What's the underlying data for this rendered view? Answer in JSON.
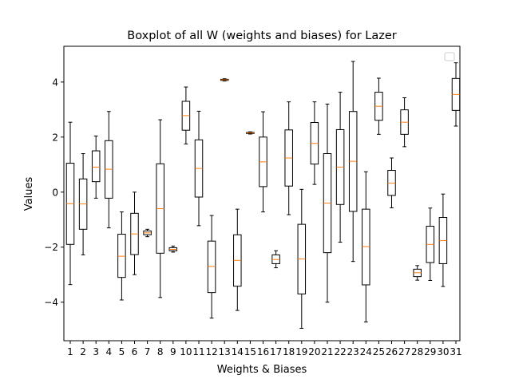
{
  "chart_data": {
    "type": "boxplot",
    "title": "Boxplot of all W (weights and biases) for Lazer",
    "xlabel": "Weights & Biases",
    "ylabel": "Values",
    "ylim": [
      -5.4,
      5.3
    ],
    "yticks": [
      -4,
      -2,
      0,
      2,
      4
    ],
    "grid": false,
    "legend": {
      "placement": "top-right",
      "entries": []
    },
    "colors": {
      "box": "#000000",
      "median": "#ff7f0e",
      "background": "#ffffff"
    },
    "categories": [
      "1",
      "2",
      "3",
      "4",
      "5",
      "6",
      "7",
      "8",
      "9",
      "10",
      "11",
      "12",
      "13",
      "14",
      "15",
      "16",
      "17",
      "18",
      "19",
      "20",
      "21",
      "22",
      "23",
      "24",
      "25",
      "26",
      "27",
      "28",
      "29",
      "30",
      "31"
    ],
    "boxes": [
      {
        "whisker_low": -3.36,
        "q1": -1.9,
        "median": -0.42,
        "q3": 1.05,
        "whisker_high": 2.54
      },
      {
        "whisker_low": -2.28,
        "q1": -1.35,
        "median": -0.43,
        "q3": 0.48,
        "whisker_high": 1.4
      },
      {
        "whisker_low": -0.22,
        "q1": 0.38,
        "median": 0.91,
        "q3": 1.5,
        "whisker_high": 2.04
      },
      {
        "whisker_low": -1.3,
        "q1": -0.22,
        "median": 0.83,
        "q3": 1.87,
        "whisker_high": 2.93
      },
      {
        "whisker_low": -3.92,
        "q1": -3.1,
        "median": -2.33,
        "q3": -1.53,
        "whisker_high": -0.72
      },
      {
        "whisker_low": -3.0,
        "q1": -2.27,
        "median": -1.52,
        "q3": -0.77,
        "whisker_high": 0.0
      },
      {
        "whisker_low": -1.62,
        "q1": -1.55,
        "median": -1.48,
        "q3": -1.41,
        "whisker_high": -1.35
      },
      {
        "whisker_low": -3.83,
        "q1": -2.22,
        "median": -0.6,
        "q3": 1.03,
        "whisker_high": 2.63
      },
      {
        "whisker_low": -2.18,
        "q1": -2.13,
        "median": -2.08,
        "q3": -2.02,
        "whisker_high": -1.96
      },
      {
        "whisker_low": 1.75,
        "q1": 2.25,
        "median": 2.78,
        "q3": 3.3,
        "whisker_high": 3.82
      },
      {
        "whisker_low": -1.22,
        "q1": -0.18,
        "median": 0.86,
        "q3": 1.9,
        "whisker_high": 2.94
      },
      {
        "whisker_low": -4.58,
        "q1": -3.65,
        "median": -2.7,
        "q3": -1.78,
        "whisker_high": -0.85
      },
      {
        "whisker_low": 4.04,
        "q1": 4.06,
        "median": 4.08,
        "q3": 4.1,
        "whisker_high": 4.12
      },
      {
        "whisker_low": -4.3,
        "q1": -3.42,
        "median": -2.48,
        "q3": -1.55,
        "whisker_high": -0.62
      },
      {
        "whisker_low": 2.11,
        "q1": 2.13,
        "median": 2.15,
        "q3": 2.17,
        "whisker_high": 2.19
      },
      {
        "whisker_low": -0.72,
        "q1": 0.2,
        "median": 1.1,
        "q3": 2.0,
        "whisker_high": 2.92
      },
      {
        "whisker_low": -2.75,
        "q1": -2.6,
        "median": -2.45,
        "q3": -2.28,
        "whisker_high": -2.13
      },
      {
        "whisker_low": -0.82,
        "q1": 0.22,
        "median": 1.24,
        "q3": 2.26,
        "whisker_high": 3.28
      },
      {
        "whisker_low": -4.95,
        "q1": -3.7,
        "median": -2.43,
        "q3": -1.17,
        "whisker_high": 0.1
      },
      {
        "whisker_low": 0.28,
        "q1": 1.02,
        "median": 1.77,
        "q3": 2.53,
        "whisker_high": 3.28
      },
      {
        "whisker_low": -4.0,
        "q1": -2.2,
        "median": -0.4,
        "q3": 1.4,
        "whisker_high": 3.2
      },
      {
        "whisker_low": -1.82,
        "q1": -0.45,
        "median": 0.91,
        "q3": 2.27,
        "whisker_high": 3.63
      },
      {
        "whisker_low": -2.52,
        "q1": -0.7,
        "median": 1.12,
        "q3": 2.93,
        "whisker_high": 4.75
      },
      {
        "whisker_low": -4.72,
        "q1": -3.37,
        "median": -1.98,
        "q3": -0.62,
        "whisker_high": 0.74
      },
      {
        "whisker_low": 2.1,
        "q1": 2.61,
        "median": 3.12,
        "q3": 3.63,
        "whisker_high": 4.14
      },
      {
        "whisker_low": -0.57,
        "q1": -0.12,
        "median": 0.33,
        "q3": 0.79,
        "whisker_high": 1.24
      },
      {
        "whisker_low": 1.65,
        "q1": 2.1,
        "median": 2.54,
        "q3": 2.99,
        "whisker_high": 3.43
      },
      {
        "whisker_low": -3.2,
        "q1": -3.07,
        "median": -2.93,
        "q3": -2.8,
        "whisker_high": -2.67
      },
      {
        "whisker_low": -3.21,
        "q1": -2.56,
        "median": -1.9,
        "q3": -1.24,
        "whisker_high": -0.58
      },
      {
        "whisker_low": -3.43,
        "q1": -2.6,
        "median": -1.76,
        "q3": -0.92,
        "whisker_high": -0.07
      },
      {
        "whisker_low": 2.4,
        "q1": 2.97,
        "median": 3.55,
        "q3": 4.13,
        "whisker_high": 4.7
      }
    ]
  }
}
